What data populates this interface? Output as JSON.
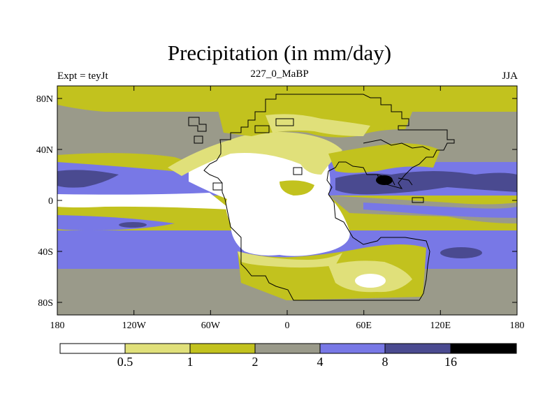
{
  "title": "Precipitation (in mm/day)",
  "subtitle_left": "Expt = teyJt",
  "subtitle_center": "227_0_MaBP",
  "subtitle_right": "JJA",
  "axes": {
    "x_ticks": [
      "180",
      "120W",
      "60W",
      "0",
      "60E",
      "120E",
      "180"
    ],
    "y_ticks": [
      "80N",
      "40N",
      "0",
      "40S",
      "80S"
    ]
  },
  "colorbar": {
    "labels": [
      "0.5",
      "1",
      "2",
      "4",
      "8",
      "16"
    ],
    "colors": [
      "#ffffff",
      "#e0e07a",
      "#c2c21e",
      "#9a9a8a",
      "#7878e6",
      "#4a4a90",
      "#000000"
    ]
  },
  "chart_data": {
    "type": "heatmap",
    "title": "Precipitation (in mm/day)",
    "variable": "Precipitation",
    "units": "mm/day",
    "experiment": "teyJt",
    "time_label": "227_0_MaBP",
    "season": "JJA",
    "xlim": [
      -180,
      180
    ],
    "ylim": [
      -90,
      90
    ],
    "levels": [
      0.5,
      1,
      2,
      4,
      8,
      16
    ],
    "zonal_band_notes": [
      {
        "lat_range": [
          60,
          90
        ],
        "class": "1-2"
      },
      {
        "lat_range": [
          30,
          60
        ],
        "class": "2-4"
      },
      {
        "lat_range": [
          10,
          25
        ],
        "class": "4-16"
      },
      {
        "lat_range": [
          -5,
          5
        ],
        "class": "<0.5 over ocean west, 4-8 in east"
      },
      {
        "lat_range": [
          -45,
          -20
        ],
        "class": "4-8"
      },
      {
        "lat_range": [
          -90,
          -60
        ],
        "class": "2-4"
      }
    ]
  }
}
